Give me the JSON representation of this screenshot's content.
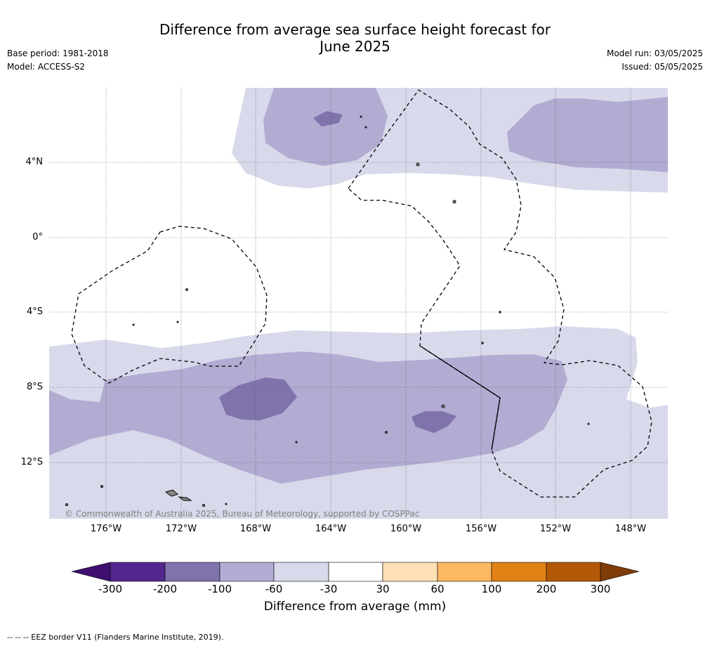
{
  "title": {
    "line1": "Difference from average sea surface height forecast for",
    "line2": "June 2025"
  },
  "meta": {
    "base_period": "Base period: 1981-2018",
    "model": "Model: ACCESS-S2",
    "model_run": "Model run: 03/05/2025",
    "issued": "Issued: 05/05/2025"
  },
  "axes": {
    "lat_labels": [
      "4°N",
      "0°",
      "4°S",
      "8°S",
      "12°S"
    ],
    "lon_labels": [
      "176°W",
      "172°W",
      "168°W",
      "164°W",
      "160°W",
      "156°W",
      "152°W",
      "148°W"
    ]
  },
  "copyright": "© Commonwealth of Australia 2025, Bureau of Meteorology, supported by COSPPac",
  "colorbar": {
    "title": "Difference from average (mm)",
    "ticks": [
      "-300",
      "-200",
      "-100",
      "-60",
      "-30",
      "30",
      "60",
      "100",
      "200",
      "300"
    ],
    "colors": [
      "#3f0f6f",
      "#54278f",
      "#8073ac",
      "#b2abd2",
      "#d8daeb",
      "#ffffff",
      "#fee0b6",
      "#fdb863",
      "#e08214",
      "#b35806",
      "#7f3b08"
    ]
  },
  "footnote": "--  --  -- EEZ border V11 (Flanders Marine Institute, 2019)."
}
